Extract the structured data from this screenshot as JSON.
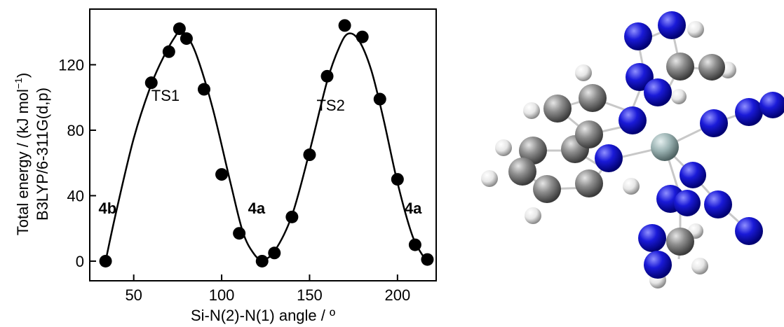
{
  "chart_data": {
    "type": "scatter",
    "xlabel": "Si-N(2)-N(1) angle / º",
    "ylabel_line1": "Total energy / (kJ mol",
    "ylabel_sup": "−1",
    "ylabel_close": ")",
    "ylabel_line2": "B3LYP/6-311G(d,p)",
    "xlim": [
      25,
      222
    ],
    "ylim": [
      -12,
      154
    ],
    "xticks": [
      50,
      100,
      150,
      200
    ],
    "yticks": [
      0,
      40,
      80,
      120
    ],
    "grid": false,
    "legend": "none",
    "series": [
      {
        "marker": "filled-circle",
        "x": [
          34,
          60,
          70,
          76,
          80,
          90,
          100,
          110,
          123,
          130,
          140,
          150,
          160,
          170,
          180,
          190,
          200,
          210,
          217
        ],
        "y": [
          0,
          109,
          128,
          142,
          136,
          105,
          53,
          17,
          0,
          5,
          27,
          65,
          113,
          144,
          137,
          99,
          50,
          10,
          1
        ]
      }
    ],
    "fit_curve": {
      "x": [
        34,
        40,
        50,
        60,
        68,
        74,
        76,
        80,
        86,
        95,
        105,
        112,
        118,
        123,
        130,
        140,
        150,
        160,
        167,
        172,
        178,
        185,
        192,
        200,
        208,
        214,
        217
      ],
      "y": [
        0,
        30,
        75,
        108,
        127,
        138,
        140,
        138,
        125,
        93,
        48,
        18,
        5,
        1,
        6,
        28,
        67,
        110,
        131,
        139,
        135,
        117,
        87,
        48,
        17,
        4,
        1
      ]
    },
    "annotations": [
      {
        "text": "TS1",
        "x": 60,
        "y": 98,
        "bold": false
      },
      {
        "text": "TS2",
        "x": 154,
        "y": 92,
        "bold": false
      },
      {
        "text": "4b",
        "x": 30,
        "y": 29,
        "bold": true
      },
      {
        "text": "4a",
        "x": 115,
        "y": 29,
        "bold": true
      },
      {
        "text": "4a",
        "x": 204,
        "y": 29,
        "bold": true
      }
    ],
    "colors": {
      "marker": "#000000",
      "line": "#000000"
    }
  },
  "molecule": {
    "colors": {
      "nitrogen": "#1a1ad8",
      "carbon": "#8e8e8e",
      "hydrogen": "#eeeeee",
      "silicon": "#9bb3b3",
      "bond": "#c8c8c8"
    }
  }
}
